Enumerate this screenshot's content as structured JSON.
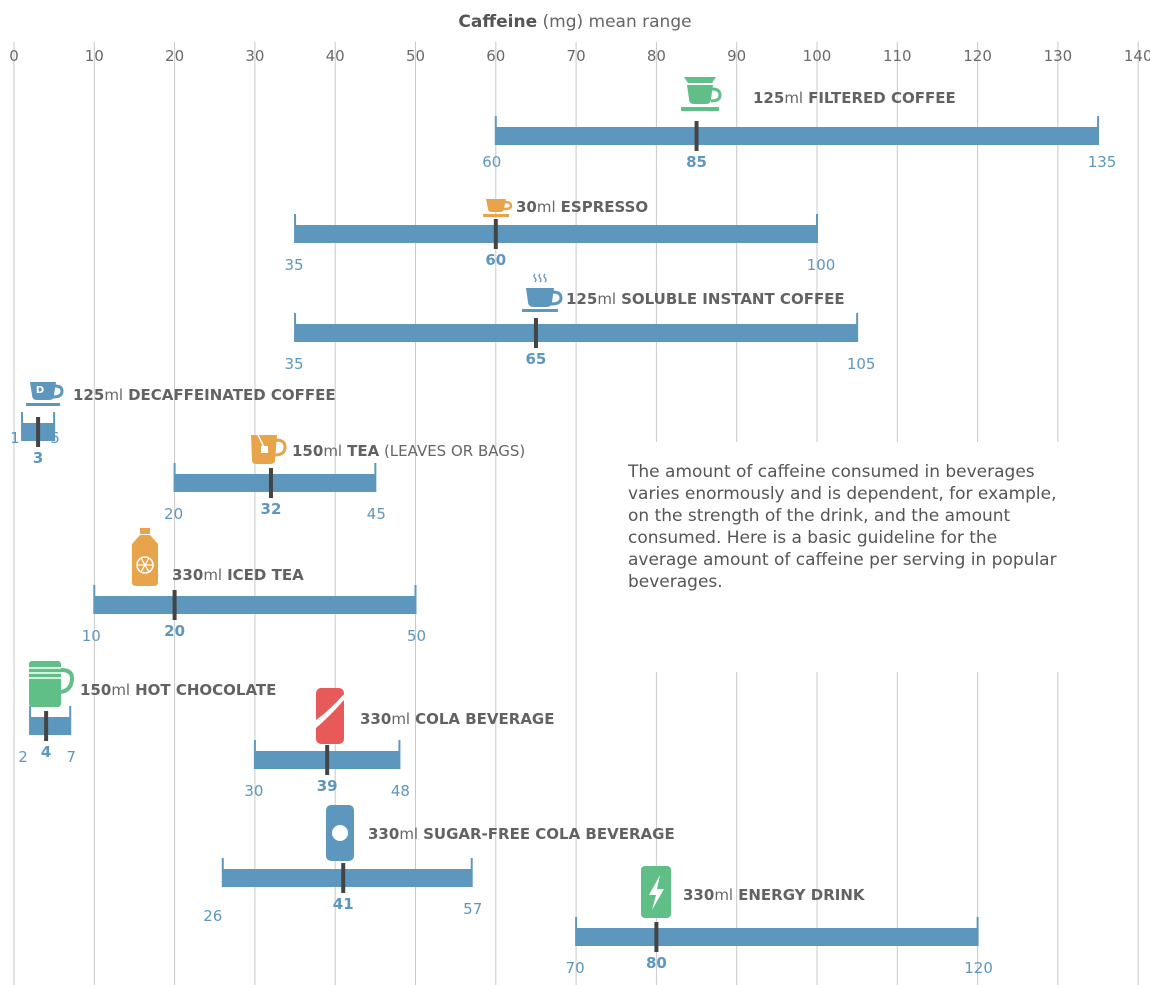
{
  "chart_data": {
    "type": "range-bar",
    "title_bold": "Caffeine",
    "title_rest": " (mg) mean range",
    "x": {
      "min": 0,
      "max": 140,
      "ticks": [
        0,
        10,
        20,
        30,
        40,
        50,
        60,
        70,
        80,
        90,
        100,
        110,
        120,
        130,
        140
      ],
      "grid": true
    },
    "series": [
      {
        "amount": "125",
        "unit": "ml",
        "name": "FILTERED COFFEE",
        "suffix": "",
        "min": 60,
        "max": 135,
        "mean": 85,
        "icon": "filtered-coffee-icon",
        "color": "#5fbf86"
      },
      {
        "amount": "30",
        "unit": "ml",
        "name": "ESPRESSO",
        "suffix": "",
        "min": 35,
        "max": 100,
        "mean": 60,
        "icon": "espresso-icon",
        "color": "#e8a44a"
      },
      {
        "amount": "125",
        "unit": "ml",
        "name": "SOLUBLE INSTANT COFFEE",
        "suffix": "",
        "min": 35,
        "max": 105,
        "mean": 65,
        "icon": "instant-coffee-icon",
        "color": "#5e97bd"
      },
      {
        "amount": "125",
        "unit": "ml",
        "name": "DECAFFEINATED COFFEE",
        "suffix": "",
        "min": 1,
        "max": 5,
        "mean": 3,
        "icon": "decaf-coffee-icon",
        "color": "#5e97bd"
      },
      {
        "amount": "150",
        "unit": "ml",
        "name": "TEA",
        "suffix": " (LEAVES OR BAGS)",
        "min": 20,
        "max": 45,
        "mean": 32,
        "icon": "tea-icon",
        "color": "#e8a44a"
      },
      {
        "amount": "330",
        "unit": "ml",
        "name": "ICED TEA",
        "suffix": "",
        "min": 10,
        "max": 50,
        "mean": 20,
        "icon": "iced-tea-bottle-icon",
        "color": "#e8a44a"
      },
      {
        "amount": "150",
        "unit": "ml",
        "name": "HOT CHOCOLATE",
        "suffix": "",
        "min": 2,
        "max": 7,
        "mean": 4,
        "icon": "hot-chocolate-mug-icon",
        "color": "#5fbf86"
      },
      {
        "amount": "330",
        "unit": "ml",
        "name": "COLA BEVERAGE",
        "suffix": "",
        "min": 30,
        "max": 48,
        "mean": 39,
        "icon": "cola-can-icon",
        "color": "#e85a5a"
      },
      {
        "amount": "330",
        "unit": "ml",
        "name": "SUGAR-FREE COLA BEVERAGE",
        "suffix": "",
        "min": 26,
        "max": 57,
        "mean": 41,
        "icon": "sugar-free-cola-can-icon",
        "color": "#5e97bd"
      },
      {
        "amount": "330",
        "unit": "ml",
        "name": "ENERGY DRINK",
        "suffix": "",
        "min": 70,
        "max": 120,
        "mean": 80,
        "icon": "energy-drink-can-icon",
        "color": "#5fbf86"
      }
    ],
    "colors": {
      "bar": "#5e97bd",
      "mean_marker": "#444444",
      "grid": "#c8c8c8",
      "range_label": "#5e97bd"
    }
  },
  "note": "The amount of caffeine consumed in beverages varies enormously and is dependent, for example, on the strength of the drink, and the amount consumed. Here is a basic guideline for the average amount of caffeine per serving in popular beverages."
}
